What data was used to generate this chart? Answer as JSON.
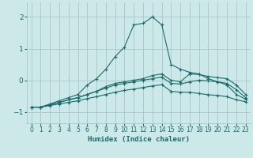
{
  "xlabel": "Humidex (Indice chaleur)",
  "ylabel": "",
  "bg_color": "#cce8e8",
  "grid_color": "#aacccc",
  "line_color": "#1a6b6b",
  "xlim": [
    -0.5,
    23.5
  ],
  "ylim": [
    -1.35,
    2.45
  ],
  "yticks": [
    -1,
    0,
    1,
    2
  ],
  "xticks": [
    0,
    1,
    2,
    3,
    4,
    5,
    6,
    7,
    8,
    9,
    10,
    11,
    12,
    13,
    14,
    15,
    16,
    17,
    18,
    19,
    20,
    21,
    22,
    23
  ],
  "series": [
    {
      "x": [
        0,
        1,
        2,
        3,
        4,
        5,
        6,
        7,
        8,
        9,
        10,
        11,
        12,
        13,
        14,
        15,
        16,
        17,
        18,
        19,
        20,
        21,
        22,
        23
      ],
      "y": [
        -0.85,
        -0.85,
        -0.75,
        -0.65,
        -0.55,
        -0.45,
        -0.15,
        0.05,
        0.35,
        0.75,
        1.05,
        1.75,
        1.8,
        2.0,
        1.75,
        0.5,
        0.35,
        0.25,
        0.2,
        0.05,
        -0.05,
        -0.15,
        -0.45,
        -0.6
      ]
    },
    {
      "x": [
        0,
        1,
        2,
        3,
        4,
        5,
        6,
        7,
        8,
        9,
        10,
        11,
        12,
        13,
        14,
        15,
        16,
        17,
        18,
        19,
        20,
        21,
        22,
        23
      ],
      "y": [
        -0.85,
        -0.85,
        -0.78,
        -0.7,
        -0.62,
        -0.55,
        -0.45,
        -0.35,
        -0.2,
        -0.1,
        -0.05,
        0.0,
        0.05,
        0.15,
        0.2,
        0.0,
        -0.05,
        0.2,
        0.18,
        0.12,
        0.08,
        0.05,
        -0.15,
        -0.45
      ]
    },
    {
      "x": [
        0,
        1,
        2,
        3,
        4,
        5,
        6,
        7,
        8,
        9,
        10,
        11,
        12,
        13,
        14,
        15,
        16,
        17,
        18,
        19,
        20,
        21,
        22,
        23
      ],
      "y": [
        -0.85,
        -0.85,
        -0.78,
        -0.7,
        -0.62,
        -0.55,
        -0.45,
        -0.35,
        -0.25,
        -0.15,
        -0.1,
        -0.05,
        0.0,
        0.05,
        0.1,
        -0.1,
        -0.12,
        -0.05,
        0.0,
        -0.02,
        -0.05,
        -0.1,
        -0.3,
        -0.55
      ]
    },
    {
      "x": [
        0,
        1,
        2,
        3,
        4,
        5,
        6,
        7,
        8,
        9,
        10,
        11,
        12,
        13,
        14,
        15,
        16,
        17,
        18,
        19,
        20,
        21,
        22,
        23
      ],
      "y": [
        -0.85,
        -0.85,
        -0.8,
        -0.75,
        -0.7,
        -0.65,
        -0.58,
        -0.52,
        -0.45,
        -0.38,
        -0.32,
        -0.28,
        -0.23,
        -0.18,
        -0.14,
        -0.35,
        -0.38,
        -0.38,
        -0.42,
        -0.46,
        -0.48,
        -0.52,
        -0.62,
        -0.68
      ]
    }
  ]
}
